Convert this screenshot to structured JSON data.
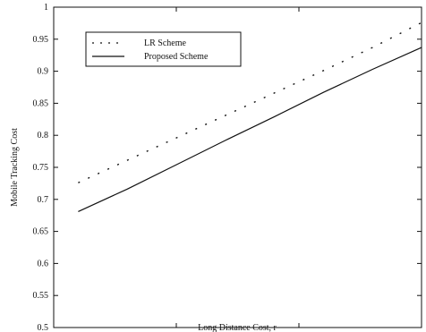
{
  "chart_data": {
    "type": "line",
    "xlabel": "Long Distance Cost, r",
    "ylabel": "Mobile Tracking Cost",
    "xlim": [
      0,
      15
    ],
    "ylim": [
      0.5,
      1.0
    ],
    "x_ticks": [
      "0",
      "5",
      "10",
      "15"
    ],
    "y_ticks": [
      "0.5",
      "0.55",
      "0.6",
      "0.65",
      "0.7",
      "0.75",
      "0.8",
      "0.85",
      "0.9",
      "0.95",
      "1"
    ],
    "grid": false,
    "legend_position": "top-left",
    "series": [
      {
        "name": "LR Scheme",
        "style": "dotted",
        "color": "#111111",
        "x": [
          1,
          3,
          5,
          7,
          9,
          11,
          13,
          15
        ],
        "y": [
          0.726,
          0.761,
          0.796,
          0.831,
          0.866,
          0.901,
          0.937,
          0.976
        ]
      },
      {
        "name": "Proposed Scheme",
        "style": "solid",
        "color": "#111111",
        "x": [
          1,
          3,
          5,
          7,
          9,
          11,
          13,
          15
        ],
        "y": [
          0.681,
          0.716,
          0.754,
          0.792,
          0.829,
          0.867,
          0.903,
          0.937
        ]
      }
    ]
  }
}
